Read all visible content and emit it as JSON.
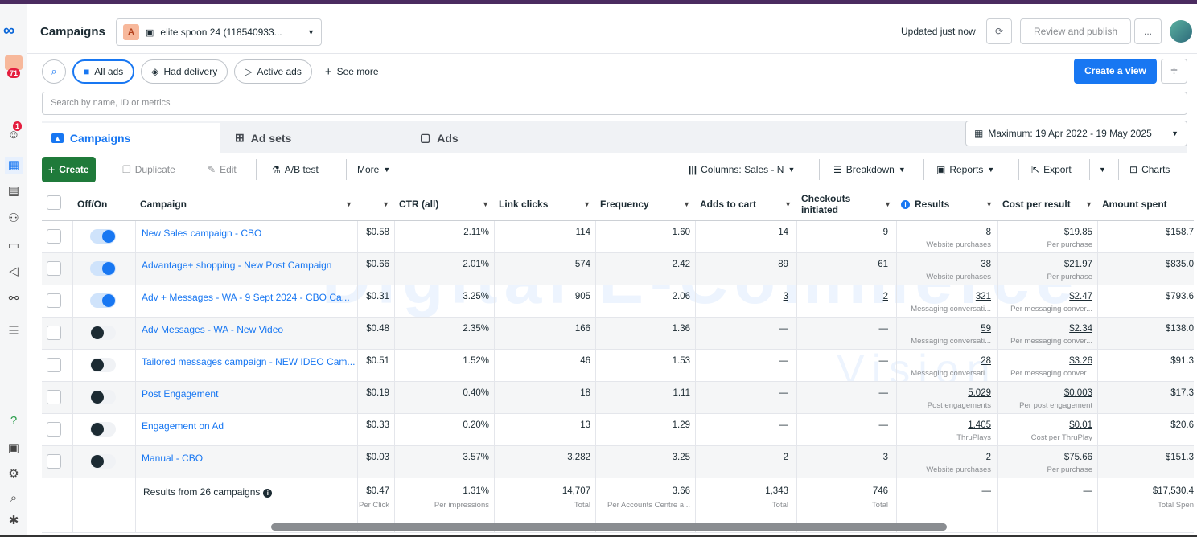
{
  "header": {
    "title": "Campaigns",
    "account_initial": "A",
    "account_name": "elite spoon 24 (118540933...",
    "updated": "Updated just now",
    "review_publish": "Review and publish",
    "more": "..."
  },
  "rail": {
    "badge_notifications": "71",
    "badge_alerts": "1"
  },
  "filters": {
    "all_ads": "All ads",
    "had_delivery": "Had delivery",
    "active_ads": "Active ads",
    "see_more": "See more",
    "create_view": "Create a view"
  },
  "search": {
    "placeholder": "Search by name, ID or metrics"
  },
  "tabs": {
    "campaigns": "Campaigns",
    "ad_sets": "Ad sets",
    "ads": "Ads"
  },
  "date_range": "Maximum: 19 Apr 2022 - 19 May 2025",
  "toolbar": {
    "create": "Create",
    "duplicate": "Duplicate",
    "edit": "Edit",
    "ab_test": "A/B test",
    "more": "More",
    "columns": "Columns: Sales - N",
    "breakdown": "Breakdown",
    "reports": "Reports",
    "export": "Export",
    "charts": "Charts"
  },
  "columns": {
    "offon": "Off/On",
    "campaign": "Campaign",
    "ctr": "CTR (all)",
    "link_clicks": "Link clicks",
    "frequency": "Frequency",
    "adds_to_cart": "Adds to cart",
    "checkouts_1": "Checkouts",
    "checkouts_2": "initiated",
    "results": "Results",
    "cost_per_result": "Cost per result",
    "amount_spent": "Amount spent"
  },
  "rows": [
    {
      "on": true,
      "name": "New Sales campaign - CBO",
      "cpc": "$0.58",
      "ctr": "2.11%",
      "clicks": "114",
      "freq": "1.60",
      "cart": "14",
      "checkouts": "9",
      "results": "8",
      "results_sub": "Website purchases",
      "cpr": "$19.85",
      "cpr_sub": "Per purchase",
      "spent": "$158.7"
    },
    {
      "on": true,
      "name": "Advantage+ shopping - New Post Campaign",
      "cpc": "$0.66",
      "ctr": "2.01%",
      "clicks": "574",
      "freq": "2.42",
      "cart": "89",
      "checkouts": "61",
      "results": "38",
      "results_sub": "Website purchases",
      "cpr": "$21.97",
      "cpr_sub": "Per purchase",
      "spent": "$835.0"
    },
    {
      "on": true,
      "name": "Adv + Messages - WA - 9 Sept 2024 - CBO Ca...",
      "cpc": "$0.31",
      "ctr": "3.25%",
      "clicks": "905",
      "freq": "2.06",
      "cart": "3",
      "checkouts": "2",
      "results": "321",
      "results_sub": "Messaging conversati...",
      "cpr": "$2.47",
      "cpr_sub": "Per messaging conver...",
      "spent": "$793.6"
    },
    {
      "on": false,
      "name": "Adv Messages - WA - New Video",
      "cpc": "$0.48",
      "ctr": "2.35%",
      "clicks": "166",
      "freq": "1.36",
      "cart": "—",
      "checkouts": "—",
      "results": "59",
      "results_sub": "Messaging conversati...",
      "cpr": "$2.34",
      "cpr_sub": "Per messaging conver...",
      "spent": "$138.0"
    },
    {
      "on": false,
      "name": "Tailored messages campaign - NEW IDEO Cam...",
      "cpc": "$0.51",
      "ctr": "1.52%",
      "clicks": "46",
      "freq": "1.53",
      "cart": "—",
      "checkouts": "—",
      "results": "28",
      "results_sub": "Messaging conversati...",
      "cpr": "$3.26",
      "cpr_sub": "Per messaging conver...",
      "spent": "$91.3"
    },
    {
      "on": false,
      "name": "Post Engagement",
      "cpc": "$0.19",
      "ctr": "0.40%",
      "clicks": "18",
      "freq": "1.11",
      "cart": "—",
      "checkouts": "—",
      "results": "5,029",
      "results_sub": "Post engagements",
      "cpr": "$0.003",
      "cpr_sub": "Per post engagement",
      "spent": "$17.3"
    },
    {
      "on": false,
      "name": "Engagement on Ad",
      "cpc": "$0.33",
      "ctr": "0.20%",
      "clicks": "13",
      "freq": "1.29",
      "cart": "—",
      "checkouts": "—",
      "results": "1,405",
      "results_sub": "ThruPlays",
      "cpr": "$0.01",
      "cpr_sub": "Cost per ThruPlay",
      "spent": "$20.6"
    },
    {
      "on": false,
      "name": "Manual - CBO",
      "cpc": "$0.03",
      "ctr": "3.57%",
      "clicks": "3,282",
      "freq": "3.25",
      "cart": "2",
      "checkouts": "3",
      "results": "2",
      "results_sub": "Website purchases",
      "cpr": "$75.66",
      "cpr_sub": "Per purchase",
      "spent": "$151.3"
    }
  ],
  "summary": {
    "label": "Results from 26 campaigns",
    "cpc": "$0.47",
    "cpc_sub": "Per Click",
    "ctr": "1.31%",
    "ctr_sub": "Per impressions",
    "clicks": "14,707",
    "clicks_sub": "Total",
    "freq": "3.66",
    "freq_sub": "Per Accounts Centre a...",
    "cart": "1,343",
    "cart_sub": "Total",
    "checkouts": "746",
    "checkouts_sub": "Total",
    "results": "—",
    "cpr": "—",
    "spent": "$17,530.4",
    "spent_sub": "Total Spen"
  },
  "watermark": {
    "line1": "Digital E-Commerce",
    "line2": "Vision"
  }
}
